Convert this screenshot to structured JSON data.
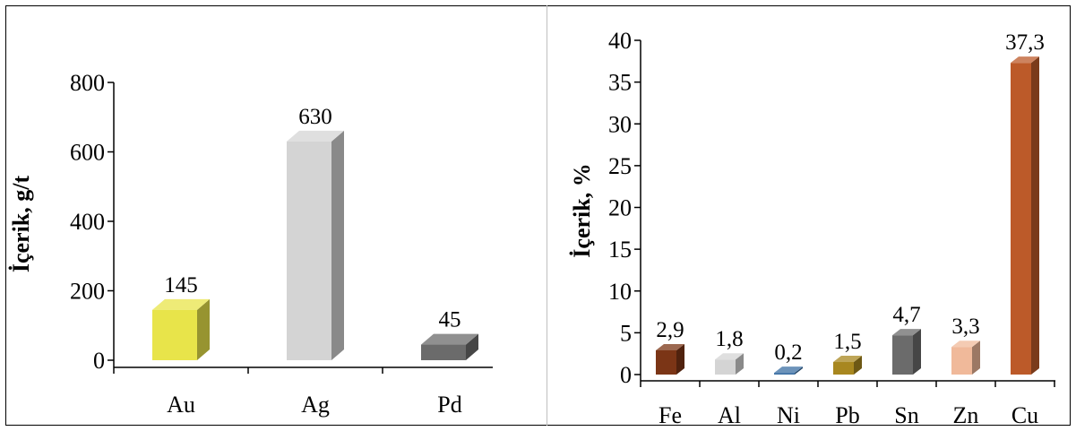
{
  "chart_data": [
    {
      "type": "bar",
      "ylabel": "İçerik, g/t",
      "ylim": [
        0,
        800
      ],
      "yticks": [
        0,
        200,
        400,
        600,
        800
      ],
      "categories": [
        "Au",
        "Ag",
        "Pd"
      ],
      "values": [
        145,
        630,
        45
      ],
      "data_labels": [
        "145",
        "630",
        "45"
      ],
      "colors": [
        "#e8e44a",
        "#d4d4d4",
        "#6b6b6b"
      ],
      "grid": false,
      "legend": "none"
    },
    {
      "type": "bar",
      "ylabel": "İçerik, %",
      "ylim": [
        0,
        40
      ],
      "yticks": [
        0,
        5,
        10,
        15,
        20,
        25,
        30,
        35,
        40
      ],
      "categories": [
        "Fe",
        "Al",
        "Ni",
        "Pb",
        "Sn",
        "Zn",
        "Cu"
      ],
      "values": [
        2.9,
        1.8,
        0.2,
        1.5,
        4.7,
        3.3,
        37.3
      ],
      "data_labels": [
        "2,9",
        "1,8",
        "0,2",
        "1,5",
        "4,7",
        "3,3",
        "37,3"
      ],
      "colors": [
        "#7b3516",
        "#d4d4d4",
        "#3b6fa3",
        "#a8871f",
        "#6b6b6b",
        "#f0b99a",
        "#bc5a29"
      ],
      "grid": false,
      "legend": "none"
    }
  ]
}
